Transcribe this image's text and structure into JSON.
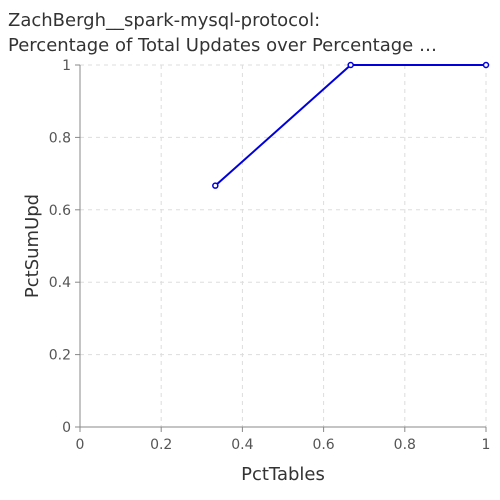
{
  "chart_data": {
    "type": "line",
    "title_line1": "ZachBergh__spark-mysql-protocol:",
    "title_line2": "Percentage of Total Updates over Percentage …",
    "xlabel": "PctTables",
    "ylabel": "PctSumUpd",
    "xlim": [
      0,
      1
    ],
    "ylim": [
      0,
      1
    ],
    "x_ticks": [
      "0",
      "0.2",
      "0.4",
      "0.6",
      "0.8",
      "1"
    ],
    "y_ticks": [
      "0",
      "0.2",
      "0.4",
      "0.6",
      "0.8",
      "1"
    ],
    "grid": true,
    "legend": "none",
    "line_color": "#0000dd",
    "series": [
      {
        "x": [
          0.3333,
          0.6667,
          1.0
        ],
        "y": [
          0.6667,
          1.0,
          1.0
        ]
      }
    ]
  }
}
